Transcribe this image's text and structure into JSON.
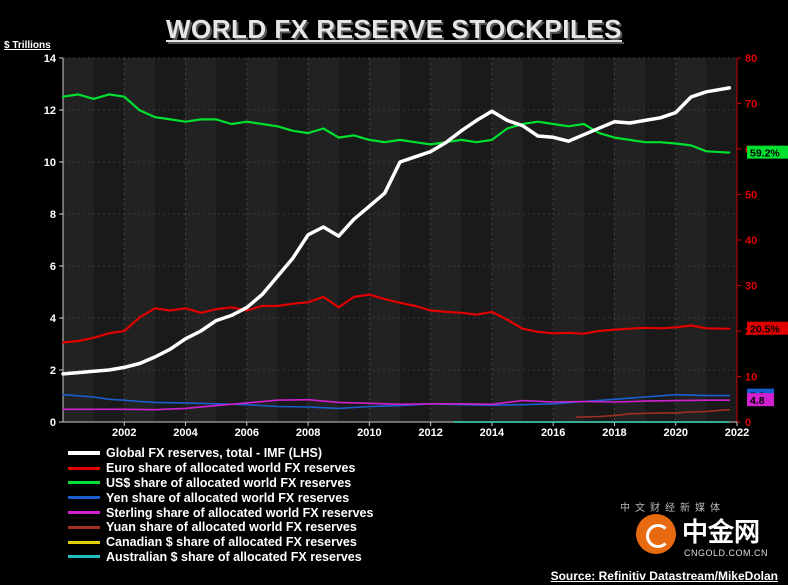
{
  "chart_data": {
    "type": "line",
    "title": "WORLD FX RESERVE STOCKPILES",
    "ylabel_left": "$ Trillions",
    "ylim_left": [
      0,
      14
    ],
    "yticks_left": [
      0,
      2,
      4,
      6,
      8,
      10,
      12,
      14
    ],
    "ylim_right": [
      0,
      80
    ],
    "yticks_right": [
      0,
      10,
      20,
      30,
      40,
      50,
      60,
      70,
      80
    ],
    "xlim": [
      2000.0,
      2022.0
    ],
    "xticks": [
      2002,
      2004,
      2006,
      2008,
      2010,
      2012,
      2014,
      2016,
      2018,
      2020,
      2022
    ],
    "source": "Source: Refinitiv Datastream/MikeDolan",
    "series": [
      {
        "name": "Global FX reserves, total - IMF (LHS)",
        "axis": "left",
        "color": "#ffffff",
        "width": 3.5,
        "x": [
          2000,
          2000.5,
          2001,
          2001.5,
          2002,
          2002.5,
          2003,
          2003.5,
          2004,
          2004.5,
          2005,
          2005.5,
          2006,
          2006.5,
          2007,
          2007.5,
          2008,
          2008.5,
          2009,
          2009.5,
          2010,
          2010.5,
          2011,
          2011.5,
          2012,
          2012.5,
          2013,
          2013.5,
          2014,
          2014.5,
          2015,
          2015.5,
          2016,
          2016.5,
          2017,
          2017.5,
          2018,
          2018.5,
          2019,
          2019.5,
          2020,
          2020.5,
          2021,
          2021.5,
          2021.75
        ],
        "values": [
          1.85,
          1.9,
          1.95,
          2.0,
          2.1,
          2.25,
          2.5,
          2.8,
          3.2,
          3.5,
          3.9,
          4.1,
          4.4,
          4.9,
          5.6,
          6.3,
          7.2,
          7.5,
          7.15,
          7.8,
          8.3,
          8.8,
          10.0,
          10.2,
          10.4,
          10.75,
          11.2,
          11.6,
          11.95,
          11.6,
          11.4,
          11.0,
          10.95,
          10.8,
          11.05,
          11.3,
          11.55,
          11.5,
          11.6,
          11.7,
          11.9,
          12.5,
          12.7,
          12.8,
          12.85
        ]
      },
      {
        "name": "Euro share of allocated world FX reserves",
        "axis": "right",
        "color": "#e00000",
        "width": 2.2,
        "x": [
          2000,
          2000.5,
          2001,
          2001.5,
          2002,
          2002.5,
          2003,
          2003.5,
          2004,
          2004.5,
          2005,
          2005.5,
          2006,
          2006.5,
          2007,
          2007.5,
          2008,
          2008.5,
          2009,
          2009.5,
          2010,
          2010.5,
          2011,
          2011.5,
          2012,
          2012.5,
          2013,
          2013.5,
          2014,
          2014.5,
          2015,
          2015.5,
          2016,
          2016.5,
          2017,
          2017.5,
          2018,
          2018.5,
          2019,
          2019.5,
          2020,
          2020.5,
          2021,
          2021.5,
          2021.75
        ],
        "values": [
          17.5,
          17.8,
          18.5,
          19.5,
          20.0,
          23.0,
          25.0,
          24.5,
          25.0,
          24.0,
          24.8,
          25.2,
          24.5,
          25.5,
          25.5,
          26.0,
          26.3,
          27.5,
          25.2,
          27.5,
          28.0,
          27.0,
          26.2,
          25.5,
          24.5,
          24.2,
          24.0,
          23.6,
          24.2,
          22.5,
          20.5,
          19.8,
          19.5,
          19.6,
          19.4,
          20.0,
          20.3,
          20.5,
          20.7,
          20.6,
          20.8,
          21.2,
          20.6,
          20.5,
          20.5
        ]
      },
      {
        "name": "US$ share of allocated world FX reserves",
        "axis": "right",
        "color": "#00e030",
        "width": 2.2,
        "x": [
          2000,
          2000.5,
          2001,
          2001.5,
          2002,
          2002.5,
          2003,
          2003.5,
          2004,
          2004.5,
          2005,
          2005.5,
          2006,
          2006.5,
          2007,
          2007.5,
          2008,
          2008.5,
          2009,
          2009.5,
          2010,
          2010.5,
          2011,
          2011.5,
          2012,
          2012.5,
          2013,
          2013.5,
          2014,
          2014.5,
          2015,
          2015.5,
          2016,
          2016.5,
          2017,
          2017.5,
          2018,
          2018.5,
          2019,
          2019.5,
          2020,
          2020.5,
          2021,
          2021.5,
          2021.75
        ],
        "values": [
          71.5,
          72.0,
          71.0,
          72.0,
          71.5,
          68.5,
          67.0,
          66.5,
          66.0,
          66.5,
          66.5,
          65.5,
          66.0,
          65.5,
          65.0,
          64.0,
          63.5,
          64.5,
          62.5,
          63.0,
          62.0,
          61.5,
          62.0,
          61.5,
          61.0,
          61.5,
          62.0,
          61.5,
          62.0,
          64.5,
          65.5,
          66.0,
          65.5,
          65.0,
          65.5,
          63.5,
          62.5,
          62.0,
          61.5,
          61.5,
          61.2,
          60.8,
          59.5,
          59.3,
          59.2
        ]
      },
      {
        "name": "Yen share of allocated world FX reserves",
        "axis": "right",
        "color": "#1a5fd0",
        "width": 1.6,
        "x": [
          2000,
          2001,
          2001.5,
          2002,
          2002.5,
          2003,
          2004,
          2005,
          2006,
          2007,
          2008,
          2009,
          2010,
          2011,
          2012,
          2013,
          2014,
          2015,
          2016,
          2017,
          2018,
          2019,
          2020,
          2021,
          2021.75
        ],
        "values": [
          6.0,
          5.5,
          5.0,
          4.8,
          4.5,
          4.3,
          4.2,
          4.0,
          3.8,
          3.4,
          3.3,
          3.0,
          3.4,
          3.6,
          4.0,
          3.8,
          3.7,
          3.8,
          4.0,
          4.5,
          5.0,
          5.5,
          6.0,
          5.8,
          5.8
        ]
      },
      {
        "name": "Sterling share of allocated world FX reserves",
        "axis": "right",
        "color": "#d020d0",
        "width": 1.6,
        "x": [
          2000,
          2001,
          2002,
          2003,
          2004,
          2005,
          2006,
          2007,
          2008,
          2009,
          2010,
          2011,
          2012,
          2013,
          2014,
          2015,
          2016,
          2017,
          2018,
          2019,
          2020,
          2021,
          2021.75
        ],
        "values": [
          2.8,
          2.8,
          2.8,
          2.7,
          3.0,
          3.6,
          4.2,
          4.8,
          4.9,
          4.3,
          4.1,
          3.9,
          4.0,
          4.0,
          3.9,
          4.7,
          4.4,
          4.5,
          4.4,
          4.6,
          4.7,
          4.8,
          4.8
        ]
      },
      {
        "name": "Yuan share of allocated world FX reserves",
        "axis": "right",
        "color": "#a03020",
        "width": 1.6,
        "x": [
          2016.75,
          2017,
          2017.5,
          2018,
          2018.5,
          2019,
          2019.5,
          2020,
          2020.5,
          2021,
          2021.5,
          2021.75
        ],
        "values": [
          1.1,
          1.1,
          1.2,
          1.4,
          1.8,
          1.9,
          2.0,
          2.0,
          2.2,
          2.3,
          2.6,
          2.7
        ]
      },
      {
        "name": "Canadian $ share of allocated FX reserves",
        "axis": "right",
        "color": "#e0d000",
        "width": 1.6,
        "x": [
          2012.75,
          2021.75
        ],
        "values": [
          0.0,
          0.0
        ]
      },
      {
        "name": "Australian $ share of allocated FX reserves",
        "axis": "right",
        "color": "#20c0c0",
        "width": 1.6,
        "x": [
          2012.75,
          2021.75
        ],
        "values": [
          0.0,
          0.0
        ]
      }
    ],
    "end_labels": [
      {
        "text": "59.2%",
        "value": 59.2,
        "axis": "right",
        "color": "#00e030"
      },
      {
        "text": "20.5%",
        "value": 20.5,
        "axis": "right",
        "color": "#e00000"
      },
      {
        "text": "5.8",
        "value": 5.8,
        "axis": "right",
        "color": "#1a5fd0"
      },
      {
        "text": "4.8",
        "value": 4.8,
        "axis": "right",
        "color": "#d020d0"
      }
    ]
  },
  "watermark": {
    "chinese": "中金网",
    "tagline": "中文财经新媒体",
    "domain": "CNGOLD.COM.CN"
  }
}
